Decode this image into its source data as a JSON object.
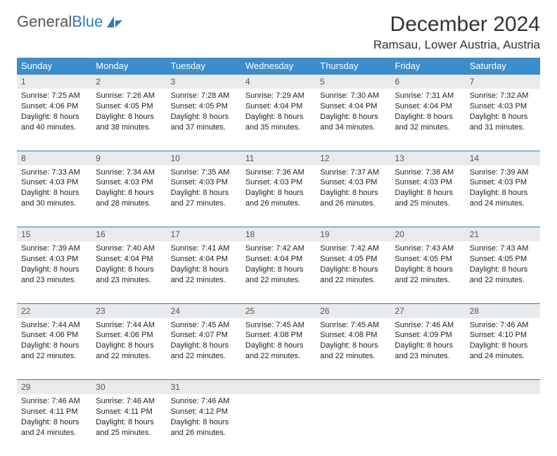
{
  "logo": {
    "text_gray": "General",
    "text_blue": "Blue"
  },
  "title": "December 2024",
  "location": "Ramsau, Lower Austria, Austria",
  "colors": {
    "header_bg": "#3c8dcc",
    "header_text": "#ffffff",
    "daynum_bg": "#e9eaeb",
    "row_divider": "#2f7bbf",
    "body_text": "#222222",
    "logo_gray": "#555555",
    "logo_blue": "#2f7bbf",
    "page_bg": "#ffffff"
  },
  "day_headers": [
    "Sunday",
    "Monday",
    "Tuesday",
    "Wednesday",
    "Thursday",
    "Friday",
    "Saturday"
  ],
  "weeks": [
    [
      {
        "n": "1",
        "sunrise": "7:25 AM",
        "sunset": "4:06 PM",
        "daylight": "8 hours and 40 minutes."
      },
      {
        "n": "2",
        "sunrise": "7:26 AM",
        "sunset": "4:05 PM",
        "daylight": "8 hours and 38 minutes."
      },
      {
        "n": "3",
        "sunrise": "7:28 AM",
        "sunset": "4:05 PM",
        "daylight": "8 hours and 37 minutes."
      },
      {
        "n": "4",
        "sunrise": "7:29 AM",
        "sunset": "4:04 PM",
        "daylight": "8 hours and 35 minutes."
      },
      {
        "n": "5",
        "sunrise": "7:30 AM",
        "sunset": "4:04 PM",
        "daylight": "8 hours and 34 minutes."
      },
      {
        "n": "6",
        "sunrise": "7:31 AM",
        "sunset": "4:04 PM",
        "daylight": "8 hours and 32 minutes."
      },
      {
        "n": "7",
        "sunrise": "7:32 AM",
        "sunset": "4:03 PM",
        "daylight": "8 hours and 31 minutes."
      }
    ],
    [
      {
        "n": "8",
        "sunrise": "7:33 AM",
        "sunset": "4:03 PM",
        "daylight": "8 hours and 30 minutes."
      },
      {
        "n": "9",
        "sunrise": "7:34 AM",
        "sunset": "4:03 PM",
        "daylight": "8 hours and 28 minutes."
      },
      {
        "n": "10",
        "sunrise": "7:35 AM",
        "sunset": "4:03 PM",
        "daylight": "8 hours and 27 minutes."
      },
      {
        "n": "11",
        "sunrise": "7:36 AM",
        "sunset": "4:03 PM",
        "daylight": "8 hours and 26 minutes."
      },
      {
        "n": "12",
        "sunrise": "7:37 AM",
        "sunset": "4:03 PM",
        "daylight": "8 hours and 26 minutes."
      },
      {
        "n": "13",
        "sunrise": "7:38 AM",
        "sunset": "4:03 PM",
        "daylight": "8 hours and 25 minutes."
      },
      {
        "n": "14",
        "sunrise": "7:39 AM",
        "sunset": "4:03 PM",
        "daylight": "8 hours and 24 minutes."
      }
    ],
    [
      {
        "n": "15",
        "sunrise": "7:39 AM",
        "sunset": "4:03 PM",
        "daylight": "8 hours and 23 minutes."
      },
      {
        "n": "16",
        "sunrise": "7:40 AM",
        "sunset": "4:04 PM",
        "daylight": "8 hours and 23 minutes."
      },
      {
        "n": "17",
        "sunrise": "7:41 AM",
        "sunset": "4:04 PM",
        "daylight": "8 hours and 22 minutes."
      },
      {
        "n": "18",
        "sunrise": "7:42 AM",
        "sunset": "4:04 PM",
        "daylight": "8 hours and 22 minutes."
      },
      {
        "n": "19",
        "sunrise": "7:42 AM",
        "sunset": "4:05 PM",
        "daylight": "8 hours and 22 minutes."
      },
      {
        "n": "20",
        "sunrise": "7:43 AM",
        "sunset": "4:05 PM",
        "daylight": "8 hours and 22 minutes."
      },
      {
        "n": "21",
        "sunrise": "7:43 AM",
        "sunset": "4:05 PM",
        "daylight": "8 hours and 22 minutes."
      }
    ],
    [
      {
        "n": "22",
        "sunrise": "7:44 AM",
        "sunset": "4:06 PM",
        "daylight": "8 hours and 22 minutes."
      },
      {
        "n": "23",
        "sunrise": "7:44 AM",
        "sunset": "4:06 PM",
        "daylight": "8 hours and 22 minutes."
      },
      {
        "n": "24",
        "sunrise": "7:45 AM",
        "sunset": "4:07 PM",
        "daylight": "8 hours and 22 minutes."
      },
      {
        "n": "25",
        "sunrise": "7:45 AM",
        "sunset": "4:08 PM",
        "daylight": "8 hours and 22 minutes."
      },
      {
        "n": "26",
        "sunrise": "7:45 AM",
        "sunset": "4:08 PM",
        "daylight": "8 hours and 22 minutes."
      },
      {
        "n": "27",
        "sunrise": "7:46 AM",
        "sunset": "4:09 PM",
        "daylight": "8 hours and 23 minutes."
      },
      {
        "n": "28",
        "sunrise": "7:46 AM",
        "sunset": "4:10 PM",
        "daylight": "8 hours and 24 minutes."
      }
    ],
    [
      {
        "n": "29",
        "sunrise": "7:46 AM",
        "sunset": "4:11 PM",
        "daylight": "8 hours and 24 minutes."
      },
      {
        "n": "30",
        "sunrise": "7:46 AM",
        "sunset": "4:11 PM",
        "daylight": "8 hours and 25 minutes."
      },
      {
        "n": "31",
        "sunrise": "7:46 AM",
        "sunset": "4:12 PM",
        "daylight": "8 hours and 26 minutes."
      },
      null,
      null,
      null,
      null
    ]
  ],
  "labels": {
    "sunrise": "Sunrise:",
    "sunset": "Sunset:",
    "daylight": "Daylight:"
  }
}
